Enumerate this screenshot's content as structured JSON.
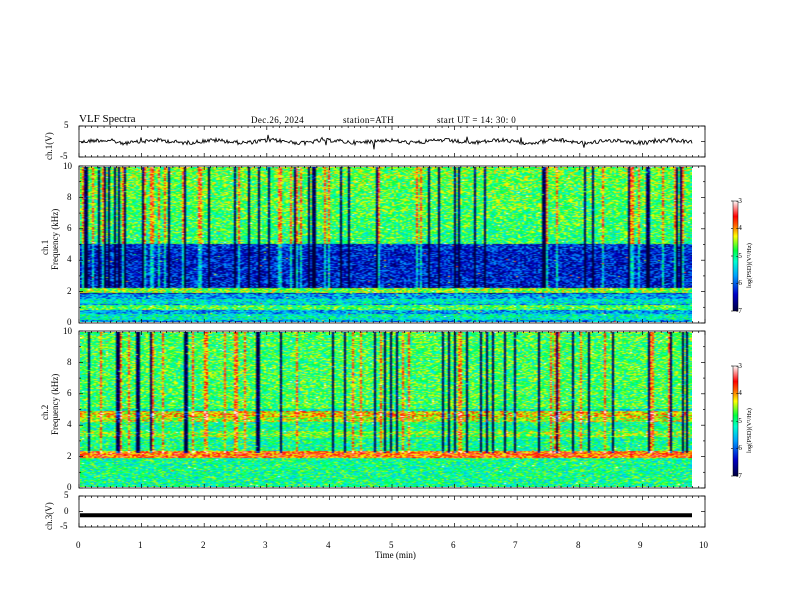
{
  "header": {
    "title": "VLF  Spectra",
    "date": "Dec.26, 2024",
    "station": "station=ATH",
    "start": "start  UT  =   14: 30: 0"
  },
  "panels": {
    "ch1_wave": {
      "ylabel": "ch.1(V)",
      "ticks": [
        "5",
        "-5"
      ]
    },
    "ch1_spec": {
      "ylabel_top": "ch.1",
      "ylabel": "Frequency  (kHz)",
      "ticks": [
        "10",
        "8",
        "6",
        "4",
        "2",
        "0"
      ]
    },
    "ch2_spec": {
      "ylabel_top": "ch.2",
      "ylabel": "Frequency  (kHz)",
      "ticks": [
        "10",
        "8",
        "6",
        "4",
        "2",
        "0"
      ]
    },
    "ch3_wave": {
      "ylabel": "ch.3(V)",
      "ticks": [
        "5",
        "0",
        "-5"
      ]
    }
  },
  "xaxis": {
    "label": "Time  (min)",
    "ticks": [
      "0",
      "1",
      "2",
      "3",
      "4",
      "5",
      "6",
      "7",
      "8",
      "9",
      "10"
    ]
  },
  "colorbar": {
    "label": "log(PSD)(V²/Hz)",
    "ticks": [
      "-3",
      "-4",
      "-5",
      "-6",
      "-7"
    ]
  },
  "chart_data": [
    {
      "type": "line",
      "title": "",
      "ylabel": "ch.1(V)",
      "xlim": [
        0,
        10
      ],
      "ylim": [
        -5,
        5
      ],
      "x": [
        0,
        9.8
      ],
      "series": [
        {
          "values": [
            0,
            0
          ]
        }
      ]
    },
    {
      "type": "heatmap",
      "ylabel": "Frequency  (kHz)",
      "xlim": [
        0,
        10
      ],
      "ylim": [
        0,
        10
      ],
      "data_xlim": [
        0,
        9.8
      ],
      "colorbar": {
        "label": "log(PSD)(V²/Hz)",
        "range": [
          -7,
          -3
        ]
      },
      "bands_khz": [
        [
          0.3,
          -5.2
        ],
        [
          0.9,
          -4.8
        ],
        [
          1.3,
          -5.3
        ],
        [
          2.0,
          -4.6
        ],
        [
          4.8,
          -6.2
        ]
      ]
    },
    {
      "type": "heatmap",
      "ylabel": "Frequency  (kHz)",
      "xlim": [
        0,
        10
      ],
      "ylim": [
        0,
        10
      ],
      "data_xlim": [
        0,
        9.8
      ],
      "colorbar": {
        "label": "log(PSD)(V²/Hz)",
        "range": [
          -7,
          -3
        ]
      },
      "bands_khz": [
        [
          2.0,
          -3.8
        ],
        [
          2.1,
          -3.9
        ],
        [
          3.4,
          -4.6
        ],
        [
          4.4,
          -4.4
        ],
        [
          4.7,
          -4.2
        ]
      ]
    },
    {
      "type": "line",
      "ylabel": "ch.3(V)",
      "xlim": [
        0,
        10
      ],
      "ylim": [
        -5,
        5
      ],
      "x": [
        0,
        9.8
      ],
      "series": [
        {
          "values": [
            -1.2,
            -1.2
          ]
        }
      ]
    }
  ],
  "colors": {
    "cmap": [
      "#000080",
      "#0000ff",
      "#00c8ff",
      "#00ff80",
      "#ffff00",
      "#ff0000",
      "#ffffff"
    ]
  }
}
